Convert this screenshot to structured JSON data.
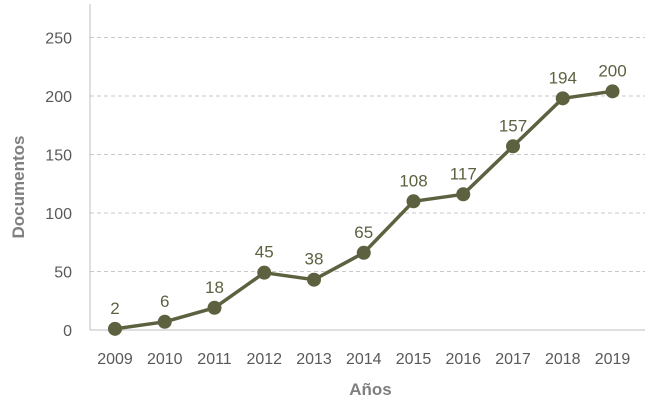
{
  "chart_data": {
    "type": "line",
    "title": "",
    "xlabel": "Años",
    "ylabel": "Documentos",
    "categories": [
      "2009",
      "2010",
      "2011",
      "2012",
      "2013",
      "2014",
      "2015",
      "2016",
      "2017",
      "2018",
      "2019"
    ],
    "series": [
      {
        "values": [
          2,
          6,
          18,
          45,
          38,
          65,
          108,
          117,
          157,
          194,
          200
        ],
        "data_labels": [
          "2",
          "6",
          "18",
          "45",
          "38",
          "65",
          "108",
          "117",
          "157",
          "194",
          "200"
        ]
      }
    ],
    "plotted_values": [
      1,
      7,
      19,
      49,
      43,
      66,
      110,
      116,
      157,
      198,
      204
    ],
    "ylim": [
      0,
      260
    ],
    "yticks": [
      "0",
      "50",
      "100",
      "150",
      "200",
      "250"
    ],
    "ytick_values": [
      0,
      50,
      100,
      150,
      200,
      250
    ],
    "grid": true,
    "legend": "none",
    "colors": {
      "line": "#5e6140",
      "marker": "#5e6140",
      "data_label": "#5e6140",
      "tick_label": "#595959",
      "axis_title": "#7f7f7f",
      "gridline": "#c8c8c8",
      "axis": "#bfbfbf"
    }
  }
}
